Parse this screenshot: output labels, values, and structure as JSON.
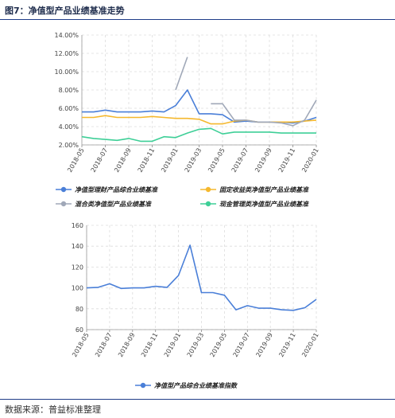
{
  "figure": {
    "title": "图7：净值型产品业绩基准走势",
    "source": "数据来源：普益标准整理"
  },
  "chart_data": [
    {
      "type": "line",
      "x": [
        "2018-05",
        "2018-06",
        "2018-07",
        "2018-08",
        "2018-09",
        "2018-10",
        "2018-11",
        "2018-12",
        "2019-01",
        "2019-02",
        "2019-03",
        "2019-04",
        "2019-05",
        "2019-06",
        "2019-07",
        "2019-08",
        "2019-09",
        "2019-10",
        "2019-11",
        "2019-12",
        "2020-01"
      ],
      "xtick_labels": [
        "2018-05",
        "2018-07",
        "2018-09",
        "2018-11",
        "2019-01",
        "2019-03",
        "2019-05",
        "2019-07",
        "2019-09",
        "2019-11",
        "2020-01"
      ],
      "yticks": [
        "2.00%",
        "4.00%",
        "6.00%",
        "8.00%",
        "10.00%",
        "12.00%",
        "14.00%"
      ],
      "ylim": [
        2,
        14
      ],
      "grid": true,
      "legend_position": "bottom",
      "series": [
        {
          "name": "净值型理财产品综合业绩基准",
          "color": "#4a7fd8",
          "values": [
            5.6,
            5.6,
            5.8,
            5.6,
            5.6,
            5.6,
            5.7,
            5.6,
            6.3,
            8.0,
            5.4,
            5.4,
            5.3,
            4.5,
            4.6,
            4.5,
            4.5,
            4.5,
            4.4,
            4.6,
            5.0
          ]
        },
        {
          "name": "固定收益类净值型产品业绩基准",
          "color": "#f5b82e",
          "values": [
            5.0,
            5.0,
            5.2,
            5.0,
            5.0,
            5.0,
            5.1,
            5.0,
            4.9,
            4.9,
            4.8,
            4.3,
            4.3,
            4.6,
            4.7,
            4.5,
            4.5,
            4.5,
            4.5,
            4.6,
            4.7
          ]
        },
        {
          "name": "混合类净值型产品业绩基准",
          "color": "#a0a8b8",
          "values": [
            null,
            null,
            null,
            null,
            null,
            null,
            null,
            null,
            8.0,
            11.6,
            null,
            6.5,
            6.5,
            4.7,
            4.7,
            4.5,
            4.5,
            4.4,
            4.1,
            4.7,
            6.9
          ]
        },
        {
          "name": "现金管理类净值型产品业绩基准",
          "color": "#3ecf97",
          "values": [
            2.9,
            2.7,
            2.6,
            2.5,
            2.7,
            2.4,
            2.4,
            2.9,
            2.8,
            3.3,
            3.7,
            3.8,
            3.2,
            3.4,
            3.4,
            3.4,
            3.4,
            3.3,
            3.3,
            3.3,
            3.3
          ]
        }
      ]
    },
    {
      "type": "line",
      "x": [
        "2018-05",
        "2018-06",
        "2018-07",
        "2018-08",
        "2018-09",
        "2018-10",
        "2018-11",
        "2018-12",
        "2019-01",
        "2019-02",
        "2019-03",
        "2019-04",
        "2019-05",
        "2019-06",
        "2019-07",
        "2019-08",
        "2019-09",
        "2019-10",
        "2019-11",
        "2019-12",
        "2020-01"
      ],
      "xtick_labels": [
        "2018-05",
        "2018-07",
        "2018-09",
        "2018-11",
        "2019-01",
        "2019-03",
        "2019-05",
        "2019-07",
        "2019-09",
        "2019-11",
        "2020-01"
      ],
      "yticks": [
        "60",
        "80",
        "100",
        "120",
        "140",
        "160"
      ],
      "ylim": [
        60,
        160
      ],
      "grid": true,
      "legend_position": "bottom",
      "series": [
        {
          "name": "净值型产品综合业绩基准指数",
          "color": "#4a7fd8",
          "values": [
            100,
            100.5,
            104,
            99.5,
            100,
            100,
            101.5,
            100.5,
            112,
            141,
            95.5,
            95.5,
            93,
            79,
            83,
            80.5,
            80.5,
            79,
            78.5,
            81,
            89
          ]
        }
      ]
    }
  ]
}
